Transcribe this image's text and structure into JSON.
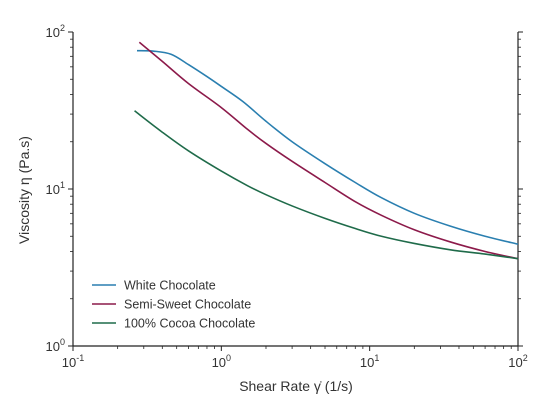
{
  "chart_data": {
    "type": "line",
    "xlabel": "Shear Rate γ̇ (1/s)",
    "ylabel": "Viscosity η (Pa.s)",
    "xscale": "log",
    "yscale": "log",
    "xlim": [
      0.1,
      100
    ],
    "ylim": [
      1,
      100
    ],
    "grid": false,
    "legend_position": "bottom-left",
    "x_ticks": [
      {
        "base": "10",
        "exp": "-1",
        "value": 0.1
      },
      {
        "base": "10",
        "exp": "0",
        "value": 1
      },
      {
        "base": "10",
        "exp": "1",
        "value": 10
      },
      {
        "base": "10",
        "exp": "2",
        "value": 100
      }
    ],
    "y_ticks": [
      {
        "base": "10",
        "exp": "0",
        "value": 1
      },
      {
        "base": "10",
        "exp": "1",
        "value": 10
      },
      {
        "base": "10",
        "exp": "2",
        "value": 100
      }
    ],
    "series": [
      {
        "name": "White Chocolate",
        "color": "#2a7fb0",
        "points": [
          [
            0.27,
            76
          ],
          [
            0.35,
            75.5
          ],
          [
            0.46,
            72
          ],
          [
            0.6,
            62
          ],
          [
            0.8,
            52
          ],
          [
            1.0,
            45
          ],
          [
            1.4,
            36
          ],
          [
            2.0,
            27
          ],
          [
            3.0,
            20
          ],
          [
            5.0,
            14.5
          ],
          [
            8.0,
            11
          ],
          [
            12.0,
            8.8
          ],
          [
            20.0,
            7.0
          ],
          [
            35.0,
            5.8
          ],
          [
            60.0,
            5.0
          ],
          [
            100.0,
            4.45
          ]
        ]
      },
      {
        "name": "Semi-Sweet Chocolate",
        "color": "#8c1a4a",
        "points": [
          [
            0.28,
            86
          ],
          [
            0.4,
            65
          ],
          [
            0.6,
            47
          ],
          [
            1.0,
            33
          ],
          [
            1.5,
            24
          ],
          [
            2.0,
            19.5
          ],
          [
            3.0,
            15
          ],
          [
            5.0,
            11
          ],
          [
            8.0,
            8.3
          ],
          [
            12.0,
            6.8
          ],
          [
            20.0,
            5.5
          ],
          [
            35.0,
            4.6
          ],
          [
            60.0,
            4.0
          ],
          [
            100.0,
            3.6
          ]
        ]
      },
      {
        "name": "100% Cocoa Chocolate",
        "color": "#1f6b4a",
        "points": [
          [
            0.26,
            31.5
          ],
          [
            0.4,
            23
          ],
          [
            0.6,
            17.5
          ],
          [
            1.0,
            13
          ],
          [
            1.5,
            10.5
          ],
          [
            2.0,
            9.2
          ],
          [
            3.0,
            7.8
          ],
          [
            5.0,
            6.5
          ],
          [
            8.0,
            5.6
          ],
          [
            12.0,
            5.0
          ],
          [
            20.0,
            4.5
          ],
          [
            35.0,
            4.1
          ],
          [
            60.0,
            3.85
          ],
          [
            100.0,
            3.6
          ]
        ]
      }
    ]
  }
}
